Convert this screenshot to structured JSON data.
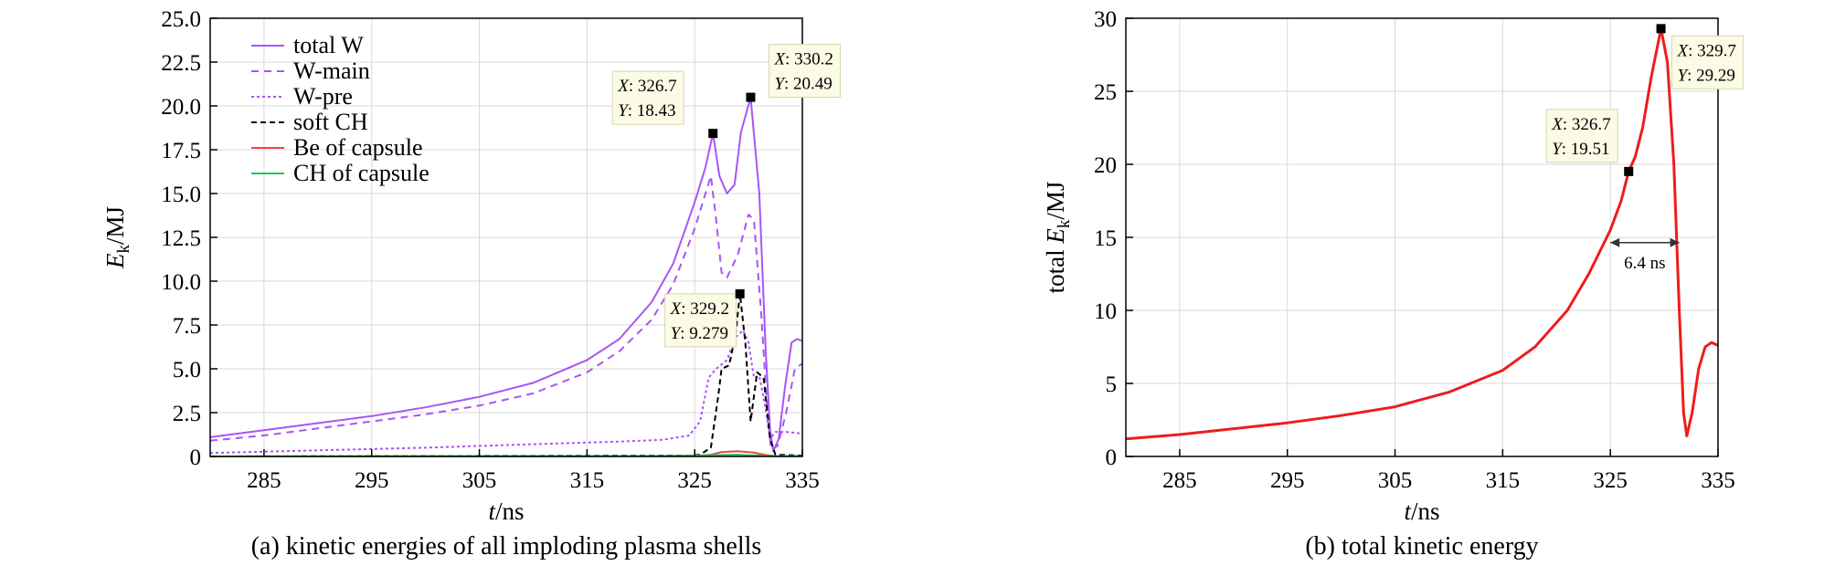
{
  "chart_data": [
    {
      "type": "line",
      "caption": "(a) kinetic energies of all imploding plasma shells",
      "xlabel_var": "t",
      "xlabel_unit": "/ns",
      "ylabel_var": "E",
      "ylabel_sub": "k",
      "ylabel_unit": "/MJ",
      "xlim": [
        280,
        335
      ],
      "ylim": [
        0,
        25
      ],
      "xticks": [
        "285",
        "295",
        "305",
        "315",
        "325",
        "335"
      ],
      "xtick_values": [
        285,
        295,
        305,
        315,
        325,
        335
      ],
      "yticks": [
        "0",
        "2.5",
        "5.0",
        "7.5",
        "10.0",
        "12.5",
        "15.0",
        "17.5",
        "20.0",
        "22.5",
        "25.0"
      ],
      "ytick_values": [
        0,
        2.5,
        5,
        7.5,
        10,
        12.5,
        15,
        17.5,
        20,
        22.5,
        25
      ],
      "legend_position": "top-left",
      "series": [
        {
          "name": "total W",
          "color": "#a855f7",
          "dash": "none",
          "points": [
            [
              280,
              1.1
            ],
            [
              285,
              1.5
            ],
            [
              290,
              1.9
            ],
            [
              295,
              2.3
            ],
            [
              300,
              2.8
            ],
            [
              305,
              3.4
            ],
            [
              310,
              4.2
            ],
            [
              315,
              5.5
            ],
            [
              318,
              6.7
            ],
            [
              321,
              8.8
            ],
            [
              323,
              11.0
            ],
            [
              325,
              14.5
            ],
            [
              326,
              16.5
            ],
            [
              326.7,
              18.43
            ],
            [
              327.3,
              16.0
            ],
            [
              328,
              15.0
            ],
            [
              328.7,
              15.5
            ],
            [
              329.3,
              18.5
            ],
            [
              330.2,
              20.49
            ],
            [
              331,
              15.0
            ],
            [
              331.6,
              6.0
            ],
            [
              332,
              1.5
            ],
            [
              332.3,
              0.3
            ],
            [
              332.8,
              1.0
            ],
            [
              333.4,
              4.0
            ],
            [
              334,
              6.5
            ],
            [
              334.5,
              6.7
            ],
            [
              335,
              6.6
            ]
          ]
        },
        {
          "name": "W-main",
          "color": "#a855f7",
          "dash": "8,6",
          "points": [
            [
              280,
              0.9
            ],
            [
              285,
              1.2
            ],
            [
              290,
              1.6
            ],
            [
              295,
              2.0
            ],
            [
              300,
              2.4
            ],
            [
              305,
              2.9
            ],
            [
              310,
              3.6
            ],
            [
              315,
              4.8
            ],
            [
              318,
              6.0
            ],
            [
              321,
              7.8
            ],
            [
              323,
              9.8
            ],
            [
              325,
              13.0
            ],
            [
              326,
              15.0
            ],
            [
              326.5,
              16.0
            ],
            [
              327,
              13.5
            ],
            [
              327.5,
              10.5
            ],
            [
              328,
              10.2
            ],
            [
              329,
              11.5
            ],
            [
              330,
              13.8
            ],
            [
              330.5,
              13.5
            ],
            [
              331.2,
              8.0
            ],
            [
              331.7,
              3.0
            ],
            [
              332.1,
              0.4
            ],
            [
              332.7,
              0.6
            ],
            [
              333.5,
              2.5
            ],
            [
              334.3,
              5.0
            ],
            [
              335,
              5.3
            ]
          ]
        },
        {
          "name": "W-pre",
          "color": "#a855f7",
          "dash": "3,3",
          "points": [
            [
              280,
              0.2
            ],
            [
              290,
              0.35
            ],
            [
              300,
              0.5
            ],
            [
              310,
              0.7
            ],
            [
              318,
              0.85
            ],
            [
              322,
              0.95
            ],
            [
              324.5,
              1.2
            ],
            [
              325.5,
              2.0
            ],
            [
              326.3,
              4.5
            ],
            [
              327,
              5.0
            ],
            [
              328,
              5.5
            ],
            [
              328.8,
              6.8
            ],
            [
              329.5,
              7.2
            ],
            [
              330,
              6.5
            ],
            [
              330.5,
              4.5
            ],
            [
              331,
              4.6
            ],
            [
              331.5,
              3.0
            ],
            [
              332,
              1.0
            ],
            [
              332.5,
              1.4
            ],
            [
              333.5,
              1.4
            ],
            [
              335,
              1.3
            ]
          ]
        },
        {
          "name": "soft CH",
          "color": "#000000",
          "dash": "6,4",
          "points": [
            [
              280,
              0
            ],
            [
              324.5,
              0.05
            ],
            [
              325.5,
              0.1
            ],
            [
              326.5,
              0.5
            ],
            [
              327.2,
              3.5
            ],
            [
              327.5,
              5.0
            ],
            [
              328.2,
              5.2
            ],
            [
              328.8,
              7.0
            ],
            [
              329.2,
              9.279
            ],
            [
              329.7,
              6.5
            ],
            [
              330.2,
              2.0
            ],
            [
              330.8,
              4.8
            ],
            [
              331.4,
              4.5
            ],
            [
              332,
              1.0
            ],
            [
              332.5,
              0.1
            ],
            [
              335,
              0.05
            ]
          ]
        },
        {
          "name": "Be of capsule",
          "color": "#ef4444",
          "dash": "none",
          "points": [
            [
              280,
              0
            ],
            [
              325,
              0.02
            ],
            [
              326.5,
              0.1
            ],
            [
              327.5,
              0.25
            ],
            [
              329,
              0.3
            ],
            [
              330.5,
              0.22
            ],
            [
              331.5,
              0.1
            ],
            [
              332.5,
              0.02
            ],
            [
              335,
              0.02
            ]
          ]
        },
        {
          "name": "CH of capsule",
          "color": "#22c55e",
          "dash": "none",
          "points": [
            [
              280,
              0
            ],
            [
              320,
              0.02
            ],
            [
              325,
              0.05
            ],
            [
              327,
              0.08
            ],
            [
              329,
              0.1
            ],
            [
              331,
              0.05
            ],
            [
              333,
              0.02
            ],
            [
              335,
              0.02
            ]
          ]
        }
      ],
      "markers": [
        {
          "x": 326.7,
          "y": 18.43,
          "label_x": "326.7",
          "label_y": "18.43"
        },
        {
          "x": 330.2,
          "y": 20.49,
          "label_x": "330.2",
          "label_y": "20.49"
        },
        {
          "x": 329.2,
          "y": 9.279,
          "label_x": "329.2",
          "label_y": "9.279"
        }
      ]
    },
    {
      "type": "line",
      "caption": "(b) total kinetic energy",
      "xlabel_var": "t",
      "xlabel_unit": "/ns",
      "ylabel_pre": "total ",
      "ylabel_var": "E",
      "ylabel_sub": "k",
      "ylabel_unit": "/MJ",
      "xlim": [
        280,
        335
      ],
      "ylim": [
        0,
        30
      ],
      "xticks": [
        "285",
        "295",
        "305",
        "315",
        "325",
        "335"
      ],
      "xtick_values": [
        285,
        295,
        305,
        315,
        325,
        335
      ],
      "yticks": [
        "0",
        "5",
        "10",
        "15",
        "20",
        "25",
        "30"
      ],
      "ytick_values": [
        0,
        5,
        10,
        15,
        20,
        25,
        30
      ],
      "series": [
        {
          "name": "total",
          "color": "#ef1c1c",
          "dash": "none",
          "points": [
            [
              280,
              1.2
            ],
            [
              285,
              1.5
            ],
            [
              290,
              1.9
            ],
            [
              295,
              2.3
            ],
            [
              300,
              2.8
            ],
            [
              305,
              3.4
            ],
            [
              310,
              4.4
            ],
            [
              315,
              5.9
            ],
            [
              318,
              7.5
            ],
            [
              321,
              10.0
            ],
            [
              323,
              12.5
            ],
            [
              325,
              15.5
            ],
            [
              326,
              17.5
            ],
            [
              326.7,
              19.51
            ],
            [
              327.3,
              20.5
            ],
            [
              328,
              22.5
            ],
            [
              328.8,
              26.0
            ],
            [
              329.7,
              29.29
            ],
            [
              330.3,
              27.0
            ],
            [
              330.9,
              20.0
            ],
            [
              331.4,
              10.0
            ],
            [
              331.8,
              3.0
            ],
            [
              332.1,
              1.4
            ],
            [
              332.6,
              3.0
            ],
            [
              333.2,
              6.0
            ],
            [
              333.8,
              7.5
            ],
            [
              334.4,
              7.8
            ],
            [
              335,
              7.6
            ]
          ]
        }
      ],
      "markers": [
        {
          "x": 326.7,
          "y": 19.51,
          "label_x": "326.7",
          "label_y": "19.51"
        },
        {
          "x": 329.7,
          "y": 29.29,
          "label_x": "329.7",
          "label_y": "29.29"
        }
      ],
      "fwhm_annotation": {
        "label": "6.4 ns",
        "x1": 325.0,
        "x2": 331.4,
        "y": 14.64
      }
    }
  ]
}
